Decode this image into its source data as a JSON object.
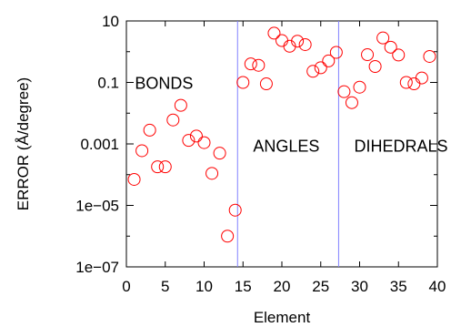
{
  "chart_data": {
    "type": "scatter",
    "xlabel": "Element",
    "ylabel": "ERROR (Å/degree)",
    "xlim": [
      0,
      40
    ],
    "ylim": [
      1e-07,
      10
    ],
    "yscale": "log",
    "grid": false,
    "xticks": [
      "0",
      "5",
      "10",
      "15",
      "20",
      "25",
      "30",
      "35",
      "40"
    ],
    "xtick_values": [
      0,
      5,
      10,
      15,
      20,
      25,
      30,
      35,
      40
    ],
    "yticks": [
      "10",
      "0.1",
      "0.001",
      "1e−05",
      "1e−07"
    ],
    "ytick_values": [
      10,
      0.1,
      0.001,
      1e-05,
      1e-07
    ],
    "marker_color": "#ff0000",
    "divider_color": "#8080ff",
    "dividers": [
      14.3,
      27.3
    ],
    "annotations": [
      {
        "text": "BONDS",
        "x": 1.1,
        "y": 0.1
      },
      {
        "text": "ANGLES",
        "x": 16.3,
        "y": 0.0009
      },
      {
        "text": "DIHEDRALS",
        "x": 29.3,
        "y": 0.0009
      }
    ],
    "series": [
      {
        "x": [
          1,
          2,
          3,
          4,
          5,
          6,
          7,
          8,
          9,
          10,
          11,
          12,
          13,
          14,
          15,
          16,
          17,
          18,
          19,
          20,
          21,
          22,
          23,
          24,
          25,
          26,
          27,
          28,
          29,
          30,
          31,
          32,
          33,
          34,
          35,
          36,
          37,
          38,
          39
        ],
        "y": [
          7e-05,
          0.0006,
          0.0028,
          0.00018,
          0.00018,
          0.006,
          0.018,
          0.0013,
          0.0018,
          0.0011,
          0.00011,
          0.0005,
          1e-06,
          7e-06,
          0.1,
          0.4,
          0.36,
          0.09,
          4.0,
          2.3,
          1.5,
          2.2,
          1.7,
          0.23,
          0.3,
          0.5,
          0.95,
          0.05,
          0.022,
          0.07,
          0.8,
          0.33,
          2.8,
          1.4,
          0.78,
          0.1,
          0.09,
          0.14,
          0.7
        ]
      }
    ]
  }
}
